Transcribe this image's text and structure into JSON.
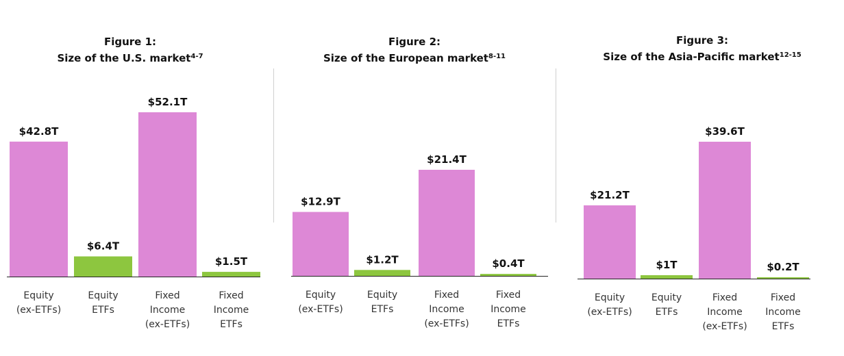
{
  "chart_data": [
    {
      "type": "bar",
      "title": "Figure 1:",
      "subtitle": "Size of the U.S. market",
      "subtitle_sup": "4-7",
      "categories": [
        [
          "Equity",
          "(ex-ETFs)"
        ],
        [
          "Equity",
          "ETFs"
        ],
        [
          "Fixed",
          "Income",
          "(ex-ETFs)"
        ],
        [
          "Fixed",
          "Income",
          "ETFs"
        ]
      ],
      "values": [
        42.8,
        6.4,
        52.1,
        1.5
      ],
      "value_labels": [
        "$42.8T",
        "$6.4T",
        "$52.1T",
        "$1.5T"
      ],
      "colors": [
        "#dd88d6",
        "#8dc63f",
        "#dd88d6",
        "#8dc63f"
      ],
      "ylim": [
        0,
        52.1
      ],
      "grid": false
    },
    {
      "type": "bar",
      "title": "Figure 2:",
      "subtitle": "Size of the European market",
      "subtitle_sup": "8-11",
      "categories": [
        [
          "Equity",
          "(ex-ETFs)"
        ],
        [
          "Equity",
          "ETFs"
        ],
        [
          "Fixed",
          "Income",
          "(ex-ETFs)"
        ],
        [
          "Fixed",
          "Income",
          "ETFs"
        ]
      ],
      "values": [
        12.9,
        1.2,
        21.4,
        0.4
      ],
      "value_labels": [
        "$12.9T",
        "$1.2T",
        "$21.4T",
        "$0.4T"
      ],
      "colors": [
        "#dd88d6",
        "#8dc63f",
        "#dd88d6",
        "#8dc63f"
      ],
      "ylim": [
        0,
        21.4
      ],
      "grid": false
    },
    {
      "type": "bar",
      "title": "Figure 3:",
      "subtitle": "Size of the Asia-Pacific market",
      "subtitle_sup": "12-15",
      "categories": [
        [
          "Equity",
          "(ex-ETFs)"
        ],
        [
          "Equity",
          "ETFs"
        ],
        [
          "Fixed",
          "Income",
          "(ex-ETFs)"
        ],
        [
          "Fixed",
          "Income",
          "ETFs"
        ]
      ],
      "values": [
        21.2,
        1.0,
        39.6,
        0.2
      ],
      "value_labels": [
        "$21.2T",
        "$1T",
        "$39.6T",
        "$0.2T"
      ],
      "colors": [
        "#dd88d6",
        "#8dc63f",
        "#dd88d6",
        "#8dc63f"
      ],
      "ylim": [
        0,
        39.6
      ],
      "grid": false
    }
  ]
}
